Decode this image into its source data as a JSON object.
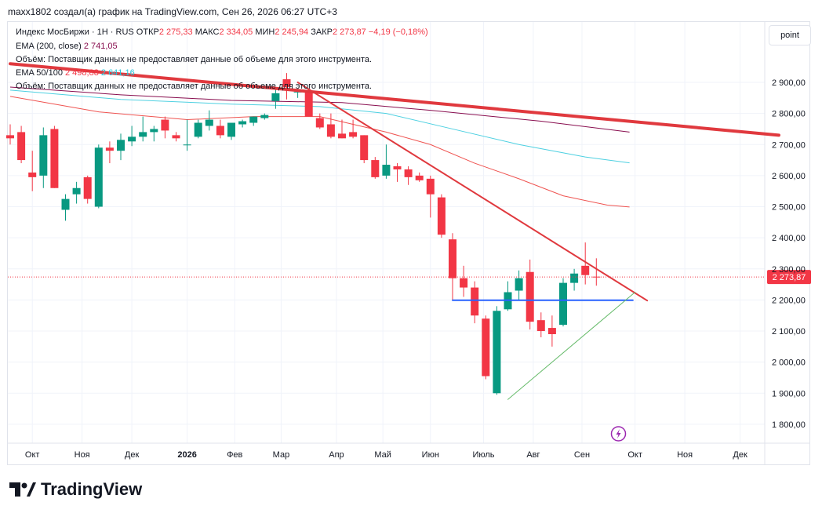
{
  "header": {
    "text": "maxx1802 создал(а) график на TradingView.com, Сен 26, 2026 06:27 UTC+3"
  },
  "legend": {
    "line1_name": "Индекс МосБиржи · 1Н · RUS",
    "open_label": "ОТКР",
    "open": "2 275,33",
    "high_label": "МАКС",
    "high": "2 334,05",
    "low_label": "МИН",
    "low": "2 245,94",
    "close_label": "ЗАКР",
    "close": "2 273,87",
    "change": "−4,19 (−0,18%)",
    "ema200_label": "EMA (200, close)",
    "ema200_value": "2 741,05",
    "volume_note_1": "Объём: Поставщик данных не предоставляет данные об объеме для этого инструмента.",
    "ema50100_label": "EMA 50/100",
    "ema50_value": "2 498,88",
    "ema100_value": "2 641,16",
    "volume_note_2": "Объём: Поставщик данных не предоставляет данные об объеме для этого инструмента."
  },
  "toolbar": {
    "point_label": "point"
  },
  "price_tag": "2 273,87",
  "footer": {
    "brand": "TradingView"
  },
  "colors": {
    "up": "#089981",
    "down": "#f23645",
    "ema200": "#880e4f",
    "ema100": "#4dd0e1",
    "ema50": "#ef5350",
    "trend": "#e0393e",
    "support": "#2962ff",
    "uptrend": "#66bb6a"
  },
  "chart_data": {
    "type": "candlestick",
    "title": "Индекс МосБиржи · 1Н · RUS",
    "ylim": [
      1750,
      2960
    ],
    "yticks": [
      1800,
      1900,
      2000,
      2100,
      2200,
      2300,
      2400,
      2500,
      2600,
      2700,
      2800,
      2900
    ],
    "ytick_labels": [
      "1 800,00",
      "1 900,00",
      "2 000,00",
      "2 100,00",
      "2 200,00",
      "2 300,00",
      "2 400,00",
      "2 500,00",
      "2 600,00",
      "2 700,00",
      "2 800,00",
      "2 900,00"
    ],
    "x_labels": [
      "Окт",
      "Ноя",
      "Дек",
      "2026",
      "Фев",
      "Мар",
      "Апр",
      "Май",
      "Июн",
      "Июль",
      "Авг",
      "Сен",
      "Окт",
      "Ноя",
      "Дек"
    ],
    "x_label_week": [
      2,
      6.5,
      11,
      16,
      20.3,
      24.5,
      29.5,
      33.7,
      38,
      42.8,
      47.3,
      51.7,
      56.5,
      61,
      66
    ],
    "week_count": 70,
    "candles": [
      {
        "o": 2730,
        "h": 2765,
        "l": 2700,
        "c": 2720
      },
      {
        "o": 2740,
        "h": 2760,
        "l": 2640,
        "c": 2650
      },
      {
        "o": 2610,
        "h": 2680,
        "l": 2550,
        "c": 2595
      },
      {
        "o": 2600,
        "h": 2755,
        "l": 2560,
        "c": 2730
      },
      {
        "o": 2750,
        "h": 2760,
        "l": 2560,
        "c": 2560
      },
      {
        "o": 2490,
        "h": 2540,
        "l": 2455,
        "c": 2525
      },
      {
        "o": 2540,
        "h": 2580,
        "l": 2510,
        "c": 2560
      },
      {
        "o": 2595,
        "h": 2600,
        "l": 2510,
        "c": 2525
      },
      {
        "o": 2500,
        "h": 2700,
        "l": 2495,
        "c": 2690
      },
      {
        "o": 2690,
        "h": 2710,
        "l": 2640,
        "c": 2680
      },
      {
        "o": 2680,
        "h": 2735,
        "l": 2650,
        "c": 2715
      },
      {
        "o": 2710,
        "h": 2760,
        "l": 2695,
        "c": 2725
      },
      {
        "o": 2725,
        "h": 2790,
        "l": 2710,
        "c": 2740
      },
      {
        "o": 2740,
        "h": 2760,
        "l": 2710,
        "c": 2750
      },
      {
        "o": 2780,
        "h": 2790,
        "l": 2720,
        "c": 2745
      },
      {
        "o": 2730,
        "h": 2740,
        "l": 2710,
        "c": 2720
      },
      {
        "o": 2700,
        "h": 2780,
        "l": 2680,
        "c": 2700
      },
      {
        "o": 2725,
        "h": 2780,
        "l": 2720,
        "c": 2770
      },
      {
        "o": 2760,
        "h": 2810,
        "l": 2745,
        "c": 2780
      },
      {
        "o": 2760,
        "h": 2780,
        "l": 2720,
        "c": 2730
      },
      {
        "o": 2725,
        "h": 2760,
        "l": 2715,
        "c": 2770
      },
      {
        "o": 2765,
        "h": 2780,
        "l": 2755,
        "c": 2775
      },
      {
        "o": 2770,
        "h": 2790,
        "l": 2760,
        "c": 2790
      },
      {
        "o": 2785,
        "h": 2800,
        "l": 2780,
        "c": 2795
      },
      {
        "o": 2840,
        "h": 2880,
        "l": 2815,
        "c": 2865
      },
      {
        "o": 2910,
        "h": 2930,
        "l": 2845,
        "c": 2885
      },
      {
        "o": 2870,
        "h": 2880,
        "l": 2850,
        "c": 2870
      },
      {
        "o": 2870,
        "h": 2880,
        "l": 2790,
        "c": 2790
      },
      {
        "o": 2785,
        "h": 2800,
        "l": 2750,
        "c": 2755
      },
      {
        "o": 2765,
        "h": 2800,
        "l": 2720,
        "c": 2725
      },
      {
        "o": 2735,
        "h": 2780,
        "l": 2720,
        "c": 2720
      },
      {
        "o": 2740,
        "h": 2780,
        "l": 2720,
        "c": 2725
      },
      {
        "o": 2730,
        "h": 2730,
        "l": 2640,
        "c": 2650
      },
      {
        "o": 2650,
        "h": 2660,
        "l": 2590,
        "c": 2595
      },
      {
        "o": 2600,
        "h": 2700,
        "l": 2590,
        "c": 2635
      },
      {
        "o": 2630,
        "h": 2640,
        "l": 2580,
        "c": 2620
      },
      {
        "o": 2620,
        "h": 2630,
        "l": 2570,
        "c": 2595
      },
      {
        "o": 2600,
        "h": 2610,
        "l": 2580,
        "c": 2585
      },
      {
        "o": 2590,
        "h": 2600,
        "l": 2465,
        "c": 2540
      },
      {
        "o": 2530,
        "h": 2540,
        "l": 2400,
        "c": 2410
      },
      {
        "o": 2395,
        "h": 2415,
        "l": 2200,
        "c": 2270
      },
      {
        "o": 2270,
        "h": 2310,
        "l": 2210,
        "c": 2240
      },
      {
        "o": 2240,
        "h": 2260,
        "l": 2125,
        "c": 2150
      },
      {
        "o": 2140,
        "h": 2150,
        "l": 1945,
        "c": 1955
      },
      {
        "o": 1900,
        "h": 2180,
        "l": 1895,
        "c": 2165
      },
      {
        "o": 2170,
        "h": 2260,
        "l": 2165,
        "c": 2225
      },
      {
        "o": 2230,
        "h": 2295,
        "l": 2200,
        "c": 2270
      },
      {
        "o": 2290,
        "h": 2330,
        "l": 2105,
        "c": 2130
      },
      {
        "o": 2135,
        "h": 2160,
        "l": 2080,
        "c": 2100
      },
      {
        "o": 2110,
        "h": 2150,
        "l": 2050,
        "c": 2090
      },
      {
        "o": 2120,
        "h": 2270,
        "l": 2115,
        "c": 2255
      },
      {
        "o": 2255,
        "h": 2300,
        "l": 2230,
        "c": 2285
      },
      {
        "o": 2310,
        "h": 2385,
        "l": 2250,
        "c": 2280
      },
      {
        "o": 2275,
        "h": 2334,
        "l": 2246,
        "c": 2274
      }
    ],
    "ema200": [
      [
        0,
        2885
      ],
      [
        10,
        2860
      ],
      [
        20,
        2842
      ],
      [
        30,
        2835
      ],
      [
        38,
        2810
      ],
      [
        48,
        2775
      ],
      [
        56,
        2740
      ]
    ],
    "ema100": [
      [
        0,
        2875
      ],
      [
        10,
        2845
      ],
      [
        20,
        2830
      ],
      [
        28,
        2822
      ],
      [
        34,
        2800
      ],
      [
        40,
        2750
      ],
      [
        46,
        2700
      ],
      [
        52,
        2660
      ],
      [
        56,
        2641
      ]
    ],
    "ema50": [
      [
        0,
        2855
      ],
      [
        8,
        2805
      ],
      [
        16,
        2780
      ],
      [
        22,
        2790
      ],
      [
        28,
        2790
      ],
      [
        34,
        2740
      ],
      [
        38,
        2700
      ],
      [
        42,
        2640
      ],
      [
        46,
        2590
      ],
      [
        50,
        2535
      ],
      [
        54,
        2505
      ],
      [
        56,
        2499
      ]
    ],
    "lines": [
      {
        "name": "descending-resistance-long",
        "from": [
          0,
          2960
        ],
        "to": [
          69.5,
          2730
        ]
      },
      {
        "name": "descending-resistance-short",
        "from": [
          26,
          2900
        ],
        "to": [
          57.6,
          2198
        ]
      },
      {
        "name": "support-level",
        "from": [
          40,
          2199
        ],
        "to": [
          56.3,
          2199
        ]
      },
      {
        "name": "rising-support",
        "from": [
          45,
          1880
        ],
        "to": [
          56.5,
          2225
        ]
      }
    ],
    "last_close": 2273.87
  }
}
